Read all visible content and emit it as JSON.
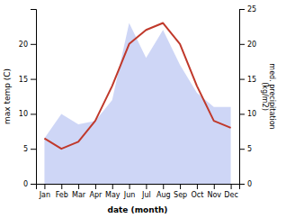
{
  "chart_data": {
    "type": "line",
    "categories": [
      "Jan",
      "Feb",
      "Mar",
      "Apr",
      "May",
      "Jun",
      "Jul",
      "Aug",
      "Sep",
      "Oct",
      "Nov",
      "Dec"
    ],
    "series": [
      {
        "type": "area",
        "color": "#c5cff5",
        "axis": "y2",
        "values": [
          6.5,
          10.0,
          8.5,
          9.0,
          12.0,
          23.0,
          18.0,
          22.0,
          17.0,
          13.0,
          11.0,
          11.0
        ]
      },
      {
        "type": "line",
        "color": "#c0392b",
        "values": [
          6.5,
          5.0,
          6.0,
          9.0,
          14.0,
          20.0,
          22.0,
          23.0,
          20.0,
          14.0,
          9.0,
          8.0
        ]
      }
    ],
    "xlabel": "date (month)",
    "ylabel": "max temp (C)",
    "y2label": "med. precipitation\n(kg/m2)",
    "ylim": [
      0,
      25
    ],
    "yticks": [
      0,
      5,
      10,
      15,
      20
    ],
    "y2lim": [
      0,
      25
    ],
    "y2ticks": [
      0,
      5,
      10,
      15,
      20,
      25
    ],
    "grid": false
  }
}
